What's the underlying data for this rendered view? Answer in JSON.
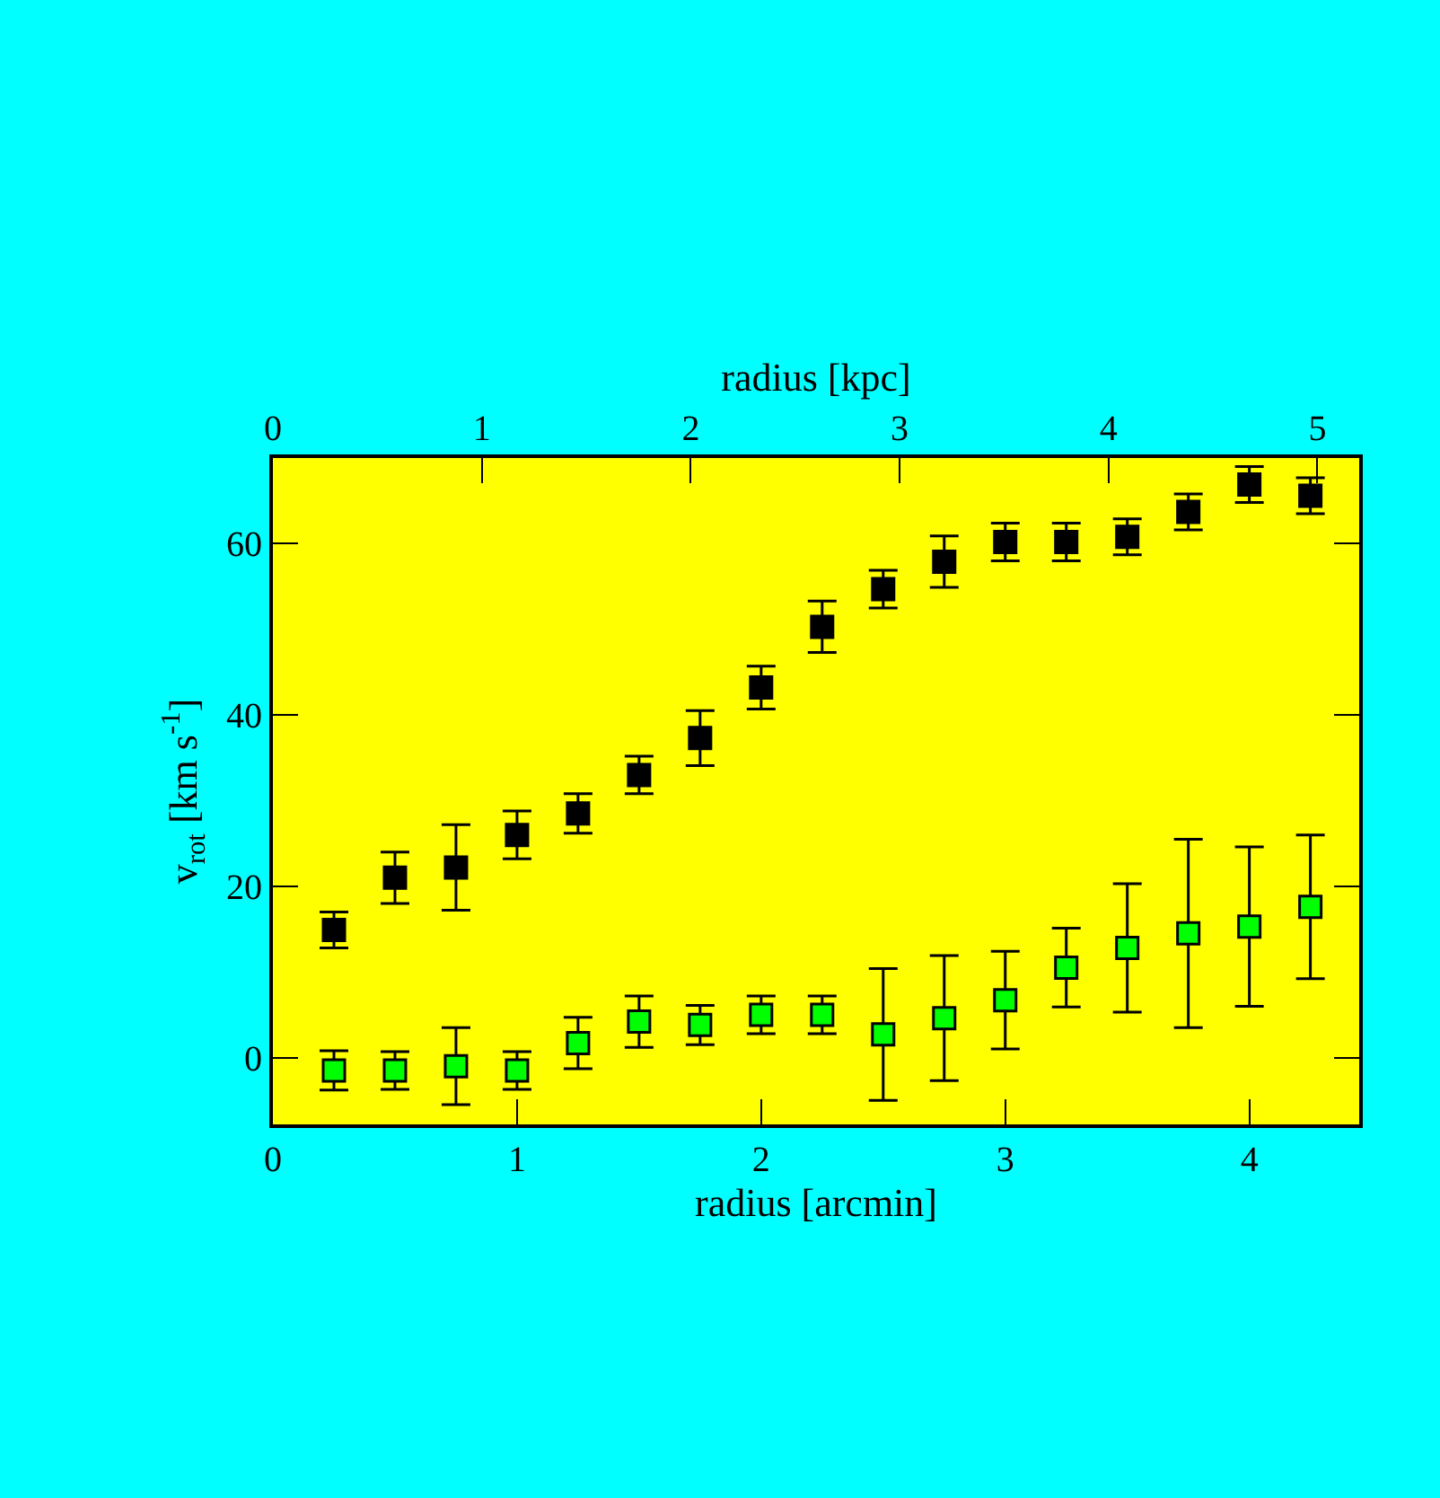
{
  "chart_data": {
    "type": "scatter",
    "xlabel": "radius [arcmin]",
    "x2label": "radius [kpc]",
    "ylabel": "v$_{rot}$ [km s$^{-1}$]",
    "x": [
      0.25,
      0.5,
      0.75,
      1.0,
      1.25,
      1.5,
      1.75,
      2.0,
      2.25,
      2.5,
      2.75,
      3.0,
      3.25,
      3.5,
      3.75,
      4.0,
      4.25
    ],
    "series": [
      {
        "color": "#000000",
        "values": [
          14.9,
          21,
          22.2,
          26,
          28.5,
          33,
          37.3,
          43.2,
          50.3,
          54.7,
          57.9,
          60.2,
          60.2,
          60.8,
          63.7,
          66.9,
          65.6
        ],
        "errors": [
          2.1,
          3,
          5,
          2.8,
          2.3,
          2.2,
          3.2,
          2.5,
          3,
          2.2,
          3,
          2.2,
          2.2,
          2.1,
          2.1,
          2.1,
          2.1
        ]
      },
      {
        "color": "#00ff00",
        "values": [
          -1.5,
          -1.5,
          -1,
          -1.5,
          1.7,
          4.2,
          3.8,
          5,
          5,
          2.7,
          4.6,
          6.7,
          10.5,
          12.8,
          14.5,
          15.3,
          17.6
        ],
        "errors": [
          2.3,
          2.2,
          4.5,
          2.2,
          3,
          3,
          2.3,
          2.2,
          2.2,
          7.7,
          7.3,
          5.7,
          4.6,
          7.5,
          11,
          9.3,
          8.4
        ]
      }
    ],
    "marker": "square",
    "xlim": [
      0,
      4.45
    ],
    "xticks": [
      0,
      1,
      2,
      3,
      4
    ],
    "x2lim": [
      0,
      5.2
    ],
    "x2ticks": [
      0,
      1,
      2,
      3,
      4,
      5
    ],
    "ylim": [
      -7.8,
      70
    ],
    "yticks": [
      0,
      20,
      40,
      60
    ]
  }
}
